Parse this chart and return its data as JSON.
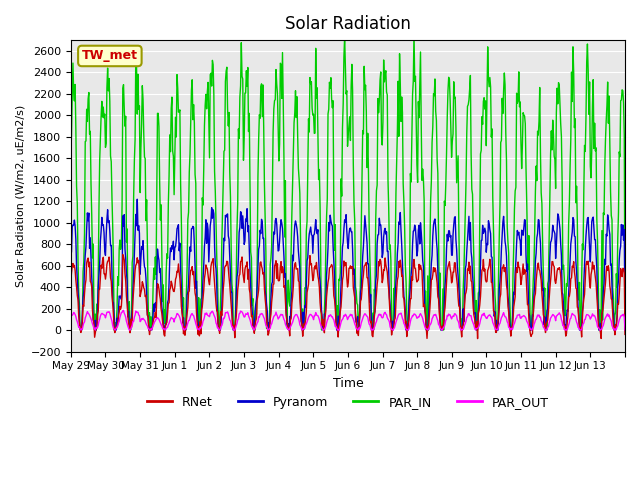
{
  "title": "Solar Radiation",
  "ylabel": "Solar Radiation (W/m2, uE/m2/s)",
  "xlabel": "Time",
  "ylim": [
    -200,
    2700
  ],
  "yticks": [
    -200,
    0,
    200,
    400,
    600,
    800,
    1000,
    1200,
    1400,
    1600,
    1800,
    2000,
    2200,
    2400,
    2600
  ],
  "colors": {
    "RNet": "#cc0000",
    "Pyranom": "#0000cc",
    "PAR_IN": "#00cc00",
    "PAR_OUT": "#ff00ff"
  },
  "bg_color": "#e8e8e8",
  "station_label": "TW_met",
  "station_label_color": "#cc0000",
  "station_box_facecolor": "#ffffcc",
  "station_box_edgecolor": "#999900",
  "num_days": 16,
  "x_tick_positions": [
    0,
    1,
    2,
    3,
    4,
    5,
    6,
    7,
    8,
    9,
    10,
    11,
    12,
    13,
    14,
    15,
    16
  ],
  "x_tick_labels": [
    "May 29",
    "May 30",
    "May 31",
    "Jun 1",
    "Jun 2",
    "Jun 3",
    "Jun 4",
    "Jun 5",
    "Jun 6",
    "Jun 7",
    "Jun 8",
    "Jun 9",
    "Jun 10",
    "Jun 11",
    "Jun 12",
    "Jun 13",
    ""
  ],
  "legend_entries": [
    "RNet",
    "Pyranom",
    "PAR_IN",
    "PAR_OUT"
  ]
}
